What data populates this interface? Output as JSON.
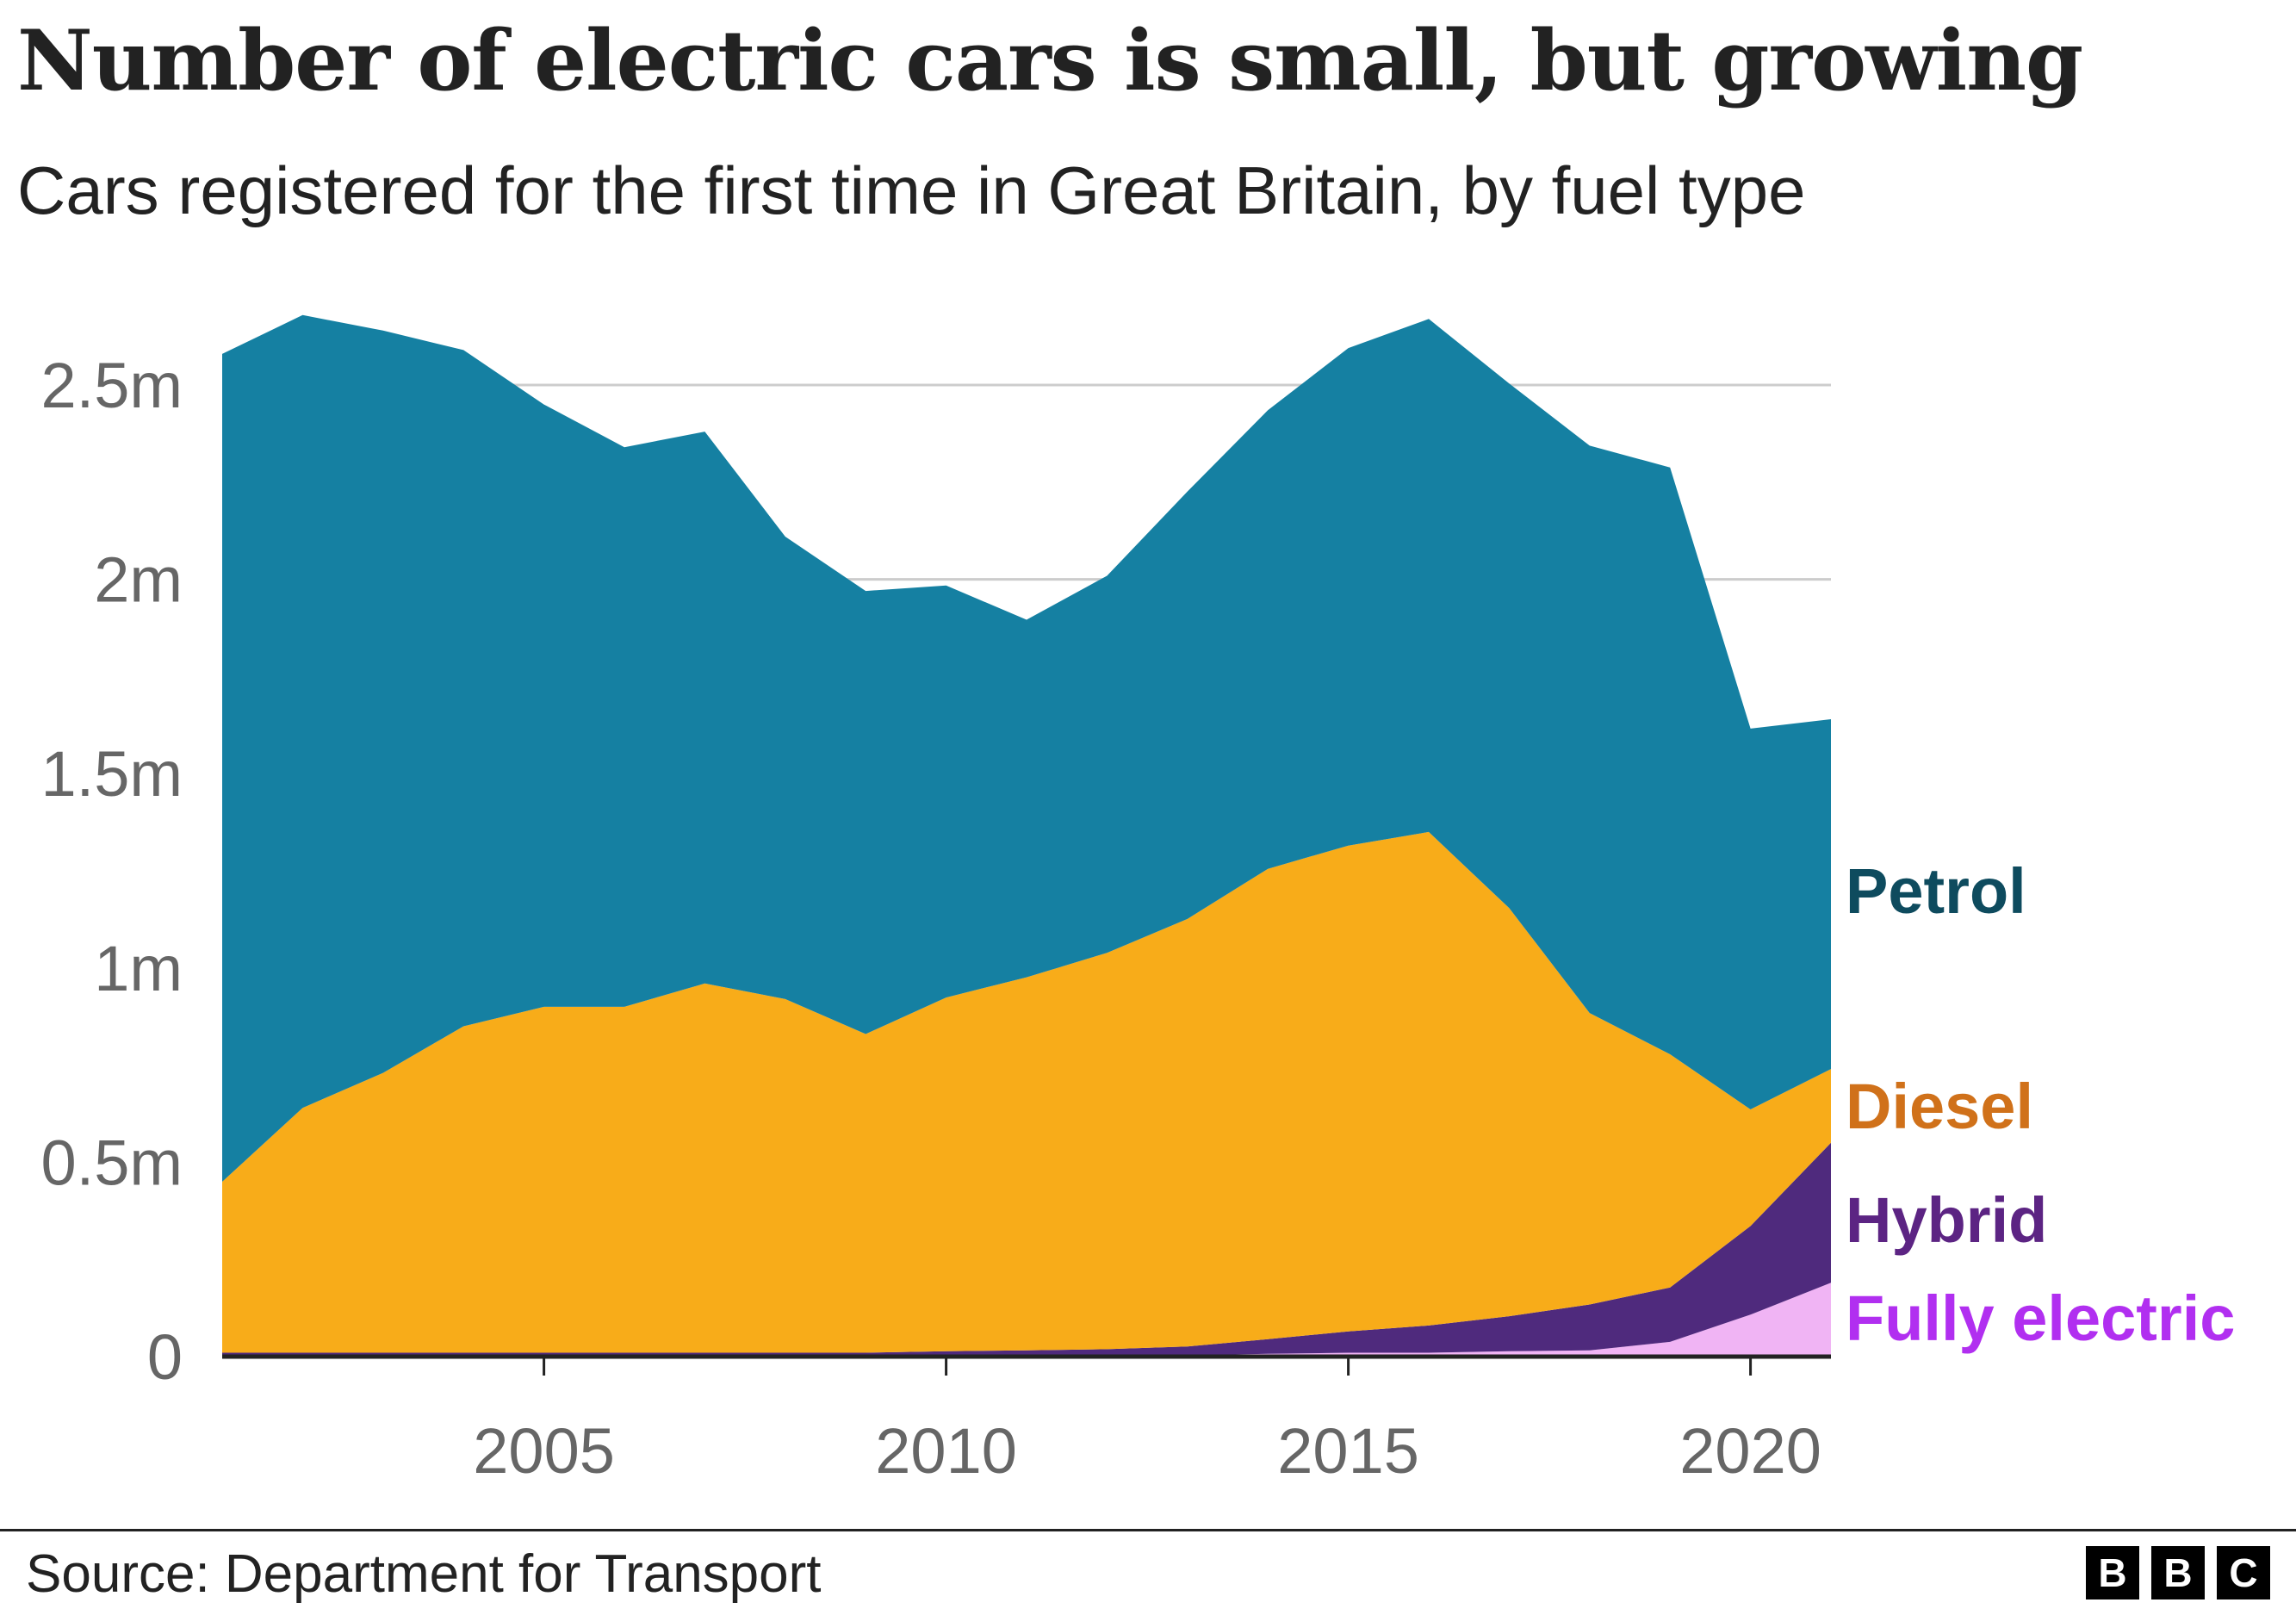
{
  "title": "Number of electric cars is small, but growing",
  "subtitle": "Cars registered for the first time in Great Britain, by fuel type",
  "source": "Source: Department for Transport",
  "logo": [
    "B",
    "B",
    "C"
  ],
  "colors": {
    "petrol": "#1580a2",
    "diesel": "#f8ac19",
    "hybrid": "#4f2a7d",
    "electric": "#f0b4f4",
    "petrol_label": "#0e4b5e",
    "diesel_label": "#d0711a",
    "hybrid_label": "#5c2483",
    "electric_label": "#b12ff0",
    "grid": "#cccccc",
    "axis": "#222222"
  },
  "chart_data": {
    "type": "area",
    "stacked": true,
    "title": "Number of electric cars is small, but growing",
    "xlabel": "",
    "ylabel": "",
    "xlim": [
      2001,
      2021
    ],
    "ylim": [
      0,
      2.5
    ],
    "x_ticks": [
      2005,
      2010,
      2015,
      2020
    ],
    "x_tick_labels": [
      "2005",
      "2010",
      "2015",
      "2020"
    ],
    "y_ticks": [
      0,
      0.5,
      1,
      1.5,
      2,
      2.5
    ],
    "y_tick_labels": [
      "0",
      "0.5m",
      "1m",
      "1.5m",
      "2m",
      "2.5m"
    ],
    "x": [
      2001,
      2002,
      2003,
      2004,
      2005,
      2006,
      2007,
      2008,
      2009,
      2010,
      2011,
      2012,
      2013,
      2014,
      2015,
      2016,
      2017,
      2018,
      2019,
      2020,
      2021
    ],
    "series": [
      {
        "name": "Fully electric",
        "key": "electric",
        "values": [
          0.0,
          0.0,
          0.0,
          0.0,
          0.0,
          0.0,
          0.0,
          0.0,
          0.0,
          0.0,
          0.001,
          0.002,
          0.003,
          0.007,
          0.01,
          0.01,
          0.014,
          0.016,
          0.038,
          0.108,
          0.19
        ]
      },
      {
        "name": "Hybrid",
        "key": "hybrid",
        "values": [
          0.01,
          0.01,
          0.01,
          0.01,
          0.01,
          0.01,
          0.01,
          0.01,
          0.01,
          0.014,
          0.015,
          0.017,
          0.023,
          0.038,
          0.055,
          0.07,
          0.09,
          0.118,
          0.14,
          0.228,
          0.36
        ]
      },
      {
        "name": "Diesel",
        "key": "diesel",
        "values": [
          0.44,
          0.63,
          0.72,
          0.84,
          0.89,
          0.89,
          0.95,
          0.91,
          0.82,
          0.91,
          0.96,
          1.02,
          1.1,
          1.21,
          1.25,
          1.27,
          1.05,
          0.75,
          0.6,
          0.3,
          0.19
        ]
      },
      {
        "name": "Petrol",
        "key": "petrol",
        "values": [
          2.13,
          2.04,
          1.91,
          1.74,
          1.55,
          1.44,
          1.42,
          1.19,
          1.14,
          1.06,
          0.92,
          0.97,
          1.1,
          1.18,
          1.28,
          1.32,
          1.35,
          1.46,
          1.51,
          0.98,
          0.9
        ]
      }
    ],
    "series_labels": {
      "petrol": "Petrol",
      "diesel": "Diesel",
      "hybrid": "Hybrid",
      "electric": "Fully electric"
    }
  }
}
